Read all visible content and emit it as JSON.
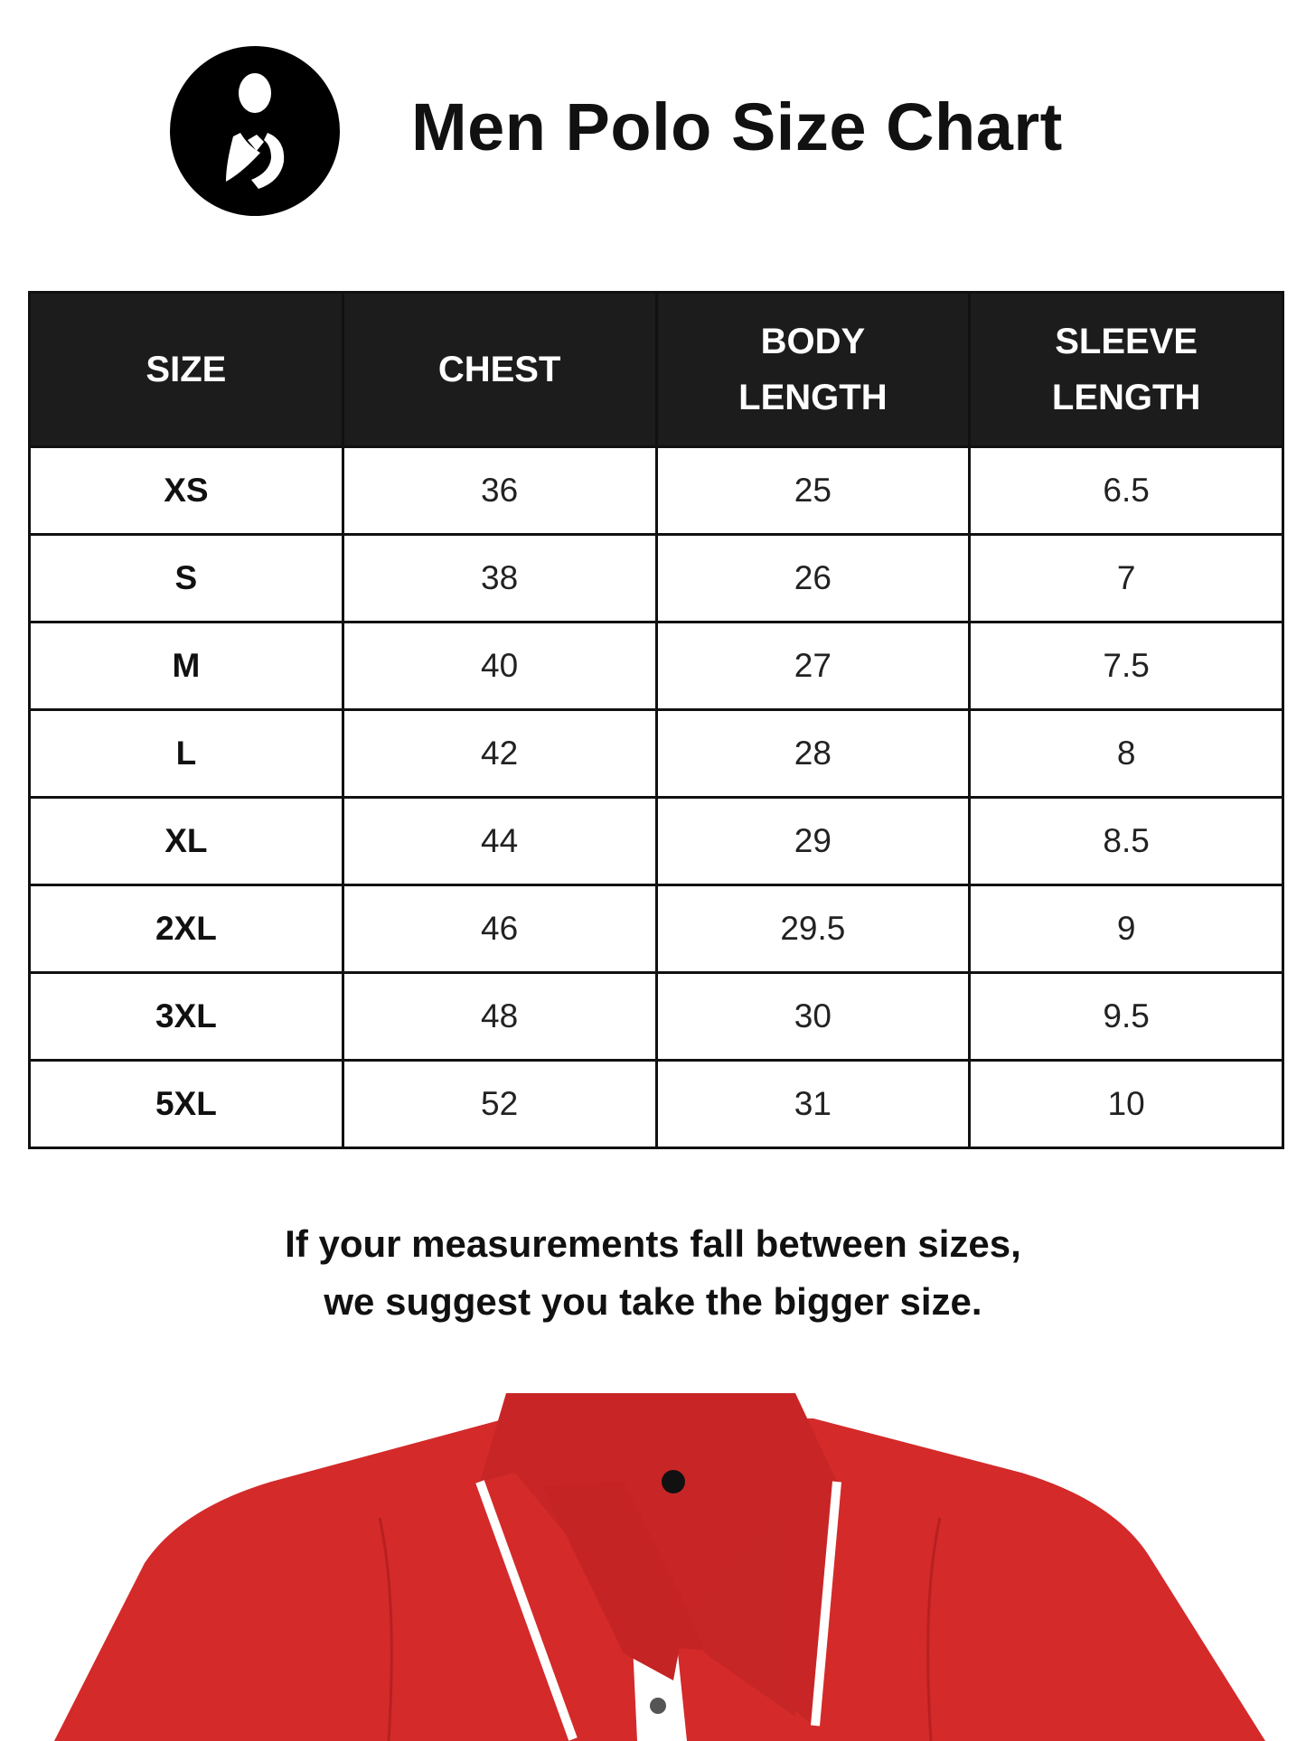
{
  "header": {
    "logo_icon": "mother-child-circle-logo",
    "title": "Men Polo Size Chart"
  },
  "table": {
    "columns": [
      {
        "line1": "SIZE",
        "line2": ""
      },
      {
        "line1": "CHEST",
        "line2": ""
      },
      {
        "line1": "BODY",
        "line2": "LENGTH"
      },
      {
        "line1": "SLEEVE",
        "line2": "LENGTH"
      }
    ],
    "rows": [
      [
        "XS",
        "36",
        "25",
        "6.5"
      ],
      [
        "S",
        "38",
        "26",
        "7"
      ],
      [
        "M",
        "40",
        "27",
        "7.5"
      ],
      [
        "L",
        "42",
        "28",
        "8"
      ],
      [
        "XL",
        "44",
        "29",
        "8.5"
      ],
      [
        "2XL",
        "46",
        "29.5",
        "9"
      ],
      [
        "3XL",
        "48",
        "30",
        "9.5"
      ],
      [
        "5XL",
        "52",
        "31",
        "10"
      ]
    ]
  },
  "note": {
    "line1": "If your measurements fall between sizes,",
    "line2": "we suggest you take the bigger size."
  },
  "colors": {
    "header_bg": "#1c1c1c",
    "shirt_red": "#d42a2a",
    "collar_tip": "#ffffff"
  }
}
